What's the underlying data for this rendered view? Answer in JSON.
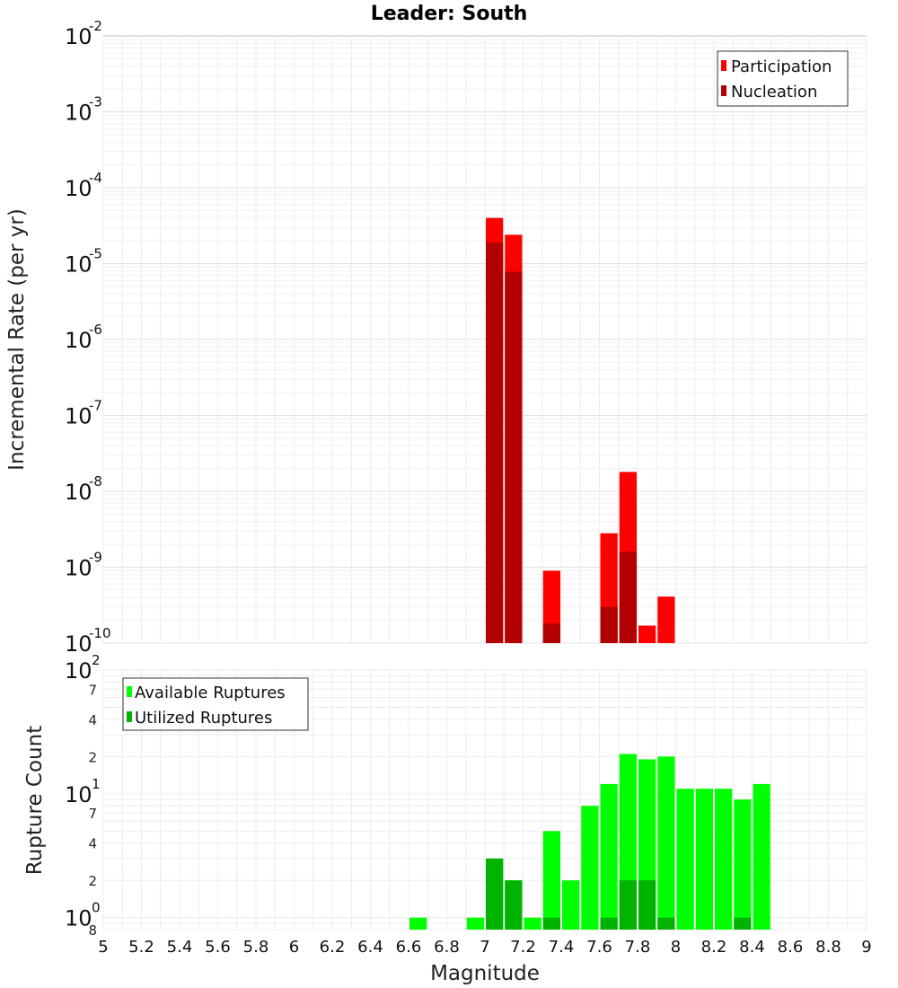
{
  "chart_data": [
    {
      "type": "bar",
      "title": "Leader: South",
      "ylabel": "Incremental Rate (per yr)",
      "xlabel": "",
      "yscale": "log",
      "ylim": [
        1e-10,
        0.01
      ],
      "xlim": [
        5,
        9
      ],
      "bin_width": 0.1,
      "grid": true,
      "legend_position": "top-right",
      "x": [
        7.05,
        7.15,
        7.35,
        7.65,
        7.75,
        7.85,
        7.95
      ],
      "series": [
        {
          "name": "Participation",
          "color": "#ff0000",
          "values": [
            4e-05,
            2.4e-05,
            9e-10,
            2.8e-09,
            1.8e-08,
            1.7e-10,
            4.1e-10
          ]
        },
        {
          "name": "Nucleation",
          "color": "#b30000",
          "values": [
            1.9e-05,
            7.8e-06,
            1.8e-10,
            3e-10,
            1.6e-09,
            null,
            null
          ]
        }
      ],
      "ytick_labels": [
        {
          "base": "10",
          "exp": "-2"
        },
        {
          "base": "10",
          "exp": "-3"
        },
        {
          "base": "10",
          "exp": "-4"
        },
        {
          "base": "10",
          "exp": "-5"
        },
        {
          "base": "10",
          "exp": "-6"
        },
        {
          "base": "10",
          "exp": "-7"
        },
        {
          "base": "10",
          "exp": "-8"
        },
        {
          "base": "10",
          "exp": "-9"
        },
        {
          "base": "10",
          "exp": "-10"
        }
      ]
    },
    {
      "type": "bar",
      "title": "",
      "ylabel": "Rupture Count",
      "xlabel": "Magnitude",
      "yscale": "log",
      "ylim": [
        0.8,
        100
      ],
      "xlim": [
        5,
        9
      ],
      "bin_width": 0.1,
      "grid": true,
      "legend_position": "top-left",
      "x": [
        6.65,
        6.95,
        7.05,
        7.15,
        7.25,
        7.35,
        7.45,
        7.55,
        7.65,
        7.75,
        7.85,
        7.95,
        8.05,
        8.15,
        8.25,
        8.35,
        8.45
      ],
      "series": [
        {
          "name": "Available Ruptures",
          "color": "#00ff00",
          "values": [
            1,
            1,
            3,
            2,
            1,
            5,
            2,
            8,
            12,
            21,
            19,
            20,
            11,
            11,
            11,
            9,
            12
          ]
        },
        {
          "name": "Utilized Ruptures",
          "color": "#00b300",
          "values": [
            null,
            null,
            3,
            2,
            null,
            1,
            null,
            null,
            1,
            2,
            2,
            1,
            null,
            null,
            null,
            1,
            null
          ]
        }
      ],
      "ytick_labels": [
        {
          "base": "10",
          "exp": "2",
          "kind": "major"
        },
        {
          "text": "7",
          "kind": "minor"
        },
        {
          "text": "4",
          "kind": "minor"
        },
        {
          "text": "2",
          "kind": "minor"
        },
        {
          "base": "10",
          "exp": "1",
          "kind": "major"
        },
        {
          "text": "7",
          "kind": "minor"
        },
        {
          "text": "4",
          "kind": "minor"
        },
        {
          "text": "2",
          "kind": "minor"
        },
        {
          "base": "10",
          "exp": "0",
          "kind": "major"
        },
        {
          "text": "8",
          "kind": "minor"
        }
      ],
      "xtick_labels": [
        "5",
        "5.2",
        "5.4",
        "5.6",
        "5.8",
        "6",
        "6.2",
        "6.4",
        "6.6",
        "6.8",
        "7",
        "7.2",
        "7.4",
        "7.6",
        "7.8",
        "8",
        "8.2",
        "8.4",
        "8.6",
        "8.8",
        "9"
      ]
    }
  ]
}
